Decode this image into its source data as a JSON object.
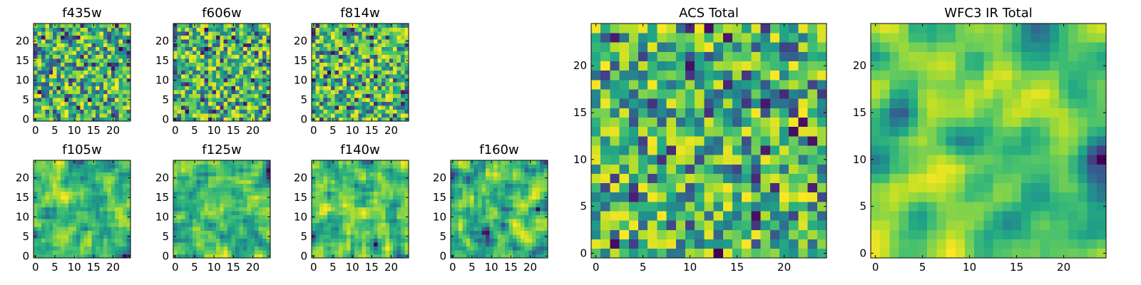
{
  "chart_data": [
    {
      "type": "heatmap",
      "title": "f435w",
      "xlim": [
        -0.5,
        24.5
      ],
      "ylim": [
        -0.5,
        24.5
      ],
      "xticks": [
        "0",
        "5",
        "10",
        "15",
        "20"
      ],
      "yticks": [
        "0",
        "5",
        "10",
        "15",
        "20"
      ],
      "grid_size": 25,
      "colormap": "viridis",
      "smoothness": 0,
      "seed": 11
    },
    {
      "type": "heatmap",
      "title": "f606w",
      "xlim": [
        -0.5,
        24.5
      ],
      "ylim": [
        -0.5,
        24.5
      ],
      "xticks": [
        "0",
        "5",
        "10",
        "15",
        "20"
      ],
      "yticks": [
        "0",
        "5",
        "10",
        "15",
        "20"
      ],
      "grid_size": 25,
      "colormap": "viridis",
      "smoothness": 0,
      "seed": 23
    },
    {
      "type": "heatmap",
      "title": "f814w",
      "xlim": [
        -0.5,
        24.5
      ],
      "ylim": [
        -0.5,
        24.5
      ],
      "xticks": [
        "0",
        "5",
        "10",
        "15",
        "20"
      ],
      "yticks": [
        "0",
        "5",
        "10",
        "15",
        "20"
      ],
      "grid_size": 25,
      "colormap": "viridis",
      "smoothness": 0,
      "seed": 37
    },
    {
      "type": "heatmap",
      "title": "f105w",
      "xlim": [
        -0.5,
        24.5
      ],
      "ylim": [
        -0.5,
        24.5
      ],
      "xticks": [
        "0",
        "5",
        "10",
        "15",
        "20"
      ],
      "yticks": [
        "0",
        "5",
        "10",
        "15",
        "20"
      ],
      "grid_size": 25,
      "colormap": "viridis",
      "smoothness": 1,
      "seed": 41
    },
    {
      "type": "heatmap",
      "title": "f125w",
      "xlim": [
        -0.5,
        24.5
      ],
      "ylim": [
        -0.5,
        24.5
      ],
      "xticks": [
        "0",
        "5",
        "10",
        "15",
        "20"
      ],
      "yticks": [
        "0",
        "5",
        "10",
        "15",
        "20"
      ],
      "grid_size": 25,
      "colormap": "viridis",
      "smoothness": 1,
      "seed": 53
    },
    {
      "type": "heatmap",
      "title": "f140w",
      "xlim": [
        -0.5,
        24.5
      ],
      "ylim": [
        -0.5,
        24.5
      ],
      "xticks": [
        "0",
        "5",
        "10",
        "15",
        "20"
      ],
      "yticks": [
        "0",
        "5",
        "10",
        "15",
        "20"
      ],
      "grid_size": 25,
      "colormap": "viridis",
      "smoothness": 1,
      "seed": 67
    },
    {
      "type": "heatmap",
      "title": "f160w",
      "xlim": [
        -0.5,
        24.5
      ],
      "ylim": [
        -0.5,
        24.5
      ],
      "xticks": [
        "0",
        "5",
        "10",
        "15",
        "20"
      ],
      "yticks": [
        "0",
        "5",
        "10",
        "15",
        "20"
      ],
      "grid_size": 25,
      "colormap": "viridis",
      "smoothness": 1,
      "seed": 79
    },
    {
      "type": "heatmap",
      "title": "ACS Total",
      "xlim": [
        -0.5,
        24.5
      ],
      "ylim": [
        -0.5,
        24.5
      ],
      "xticks": [
        "0",
        "5",
        "10",
        "15",
        "20"
      ],
      "yticks": [
        "0",
        "5",
        "10",
        "15",
        "20"
      ],
      "grid_size": 25,
      "colormap": "viridis",
      "smoothness": 0,
      "seed": 97
    },
    {
      "type": "heatmap",
      "title": "WFC3 IR Total",
      "xlim": [
        -0.5,
        24.5
      ],
      "ylim": [
        -0.5,
        24.5
      ],
      "xticks": [
        "0",
        "5",
        "10",
        "15",
        "20"
      ],
      "yticks": [
        "0",
        "5",
        "10",
        "15",
        "20"
      ],
      "grid_size": 25,
      "colormap": "viridis",
      "smoothness": 2,
      "seed": 113
    }
  ]
}
